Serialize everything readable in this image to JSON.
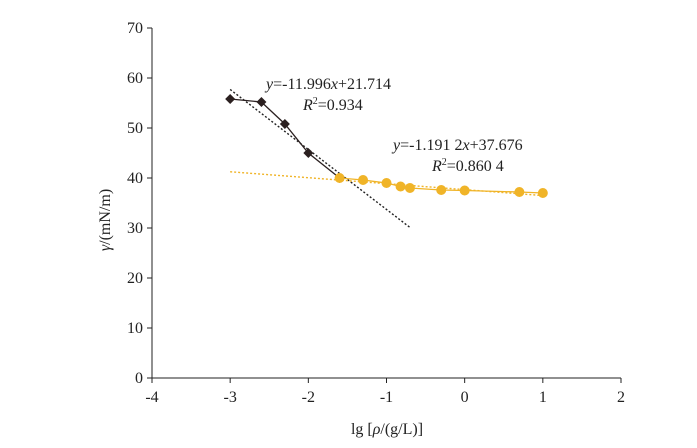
{
  "chart_data": {
    "type": "scatter",
    "xlabel_prefix": "lg [",
    "xlabel_rho": "ρ",
    "xlabel_suffix": "/(g/L)]",
    "ylabel_gamma": "γ",
    "ylabel_unit": "/(mN/m)",
    "xlim": [
      -4,
      2
    ],
    "ylim": [
      0,
      70
    ],
    "x_ticks": [
      -4,
      -3,
      -2,
      -1,
      0,
      1,
      2
    ],
    "y_ticks": [
      0,
      10,
      20,
      30,
      40,
      50,
      60,
      70
    ],
    "grid": false,
    "series": [
      {
        "marker": "diamond",
        "color": "#2b2020",
        "connected": true,
        "points": [
          {
            "x": -3.0,
            "y": 55.8
          },
          {
            "x": -2.6,
            "y": 55.2
          },
          {
            "x": -2.3,
            "y": 50.8
          },
          {
            "x": -2.0,
            "y": 45.0
          },
          {
            "x": -1.6,
            "y": 40.0
          }
        ]
      },
      {
        "marker": "circle",
        "color": "#f0b428",
        "connected": true,
        "points": [
          {
            "x": -1.6,
            "y": 40.0
          },
          {
            "x": -1.3,
            "y": 39.6
          },
          {
            "x": -1.0,
            "y": 39.0
          },
          {
            "x": -0.82,
            "y": 38.3
          },
          {
            "x": -0.7,
            "y": 38.0
          },
          {
            "x": -0.3,
            "y": 37.6
          },
          {
            "x": 0.0,
            "y": 37.5
          },
          {
            "x": 0.7,
            "y": 37.2
          },
          {
            "x": 1.0,
            "y": 37.0
          }
        ]
      }
    ],
    "trendlines": [
      {
        "slope": -11.996,
        "intercept": 21.714,
        "x_range": [
          -3.0,
          -0.7
        ],
        "color": "#222222"
      },
      {
        "slope": -1.1912,
        "intercept": 37.676,
        "x_range": [
          -3.0,
          1.0
        ],
        "color": "#f0b428"
      }
    ],
    "annotations": [
      {
        "eq_y": "y",
        "eq_body1": "=-11.996",
        "eq_x": "x",
        "eq_body2": "+21.714",
        "r_label": "R",
        "r_sup": "2",
        "r_value": "=0.934"
      },
      {
        "eq_y": "y",
        "eq_body1": "=-1.191 2",
        "eq_x": "x",
        "eq_body2": "+37.676",
        "r_label": "R",
        "r_sup": "2",
        "r_value": "=0.860 4"
      }
    ]
  }
}
